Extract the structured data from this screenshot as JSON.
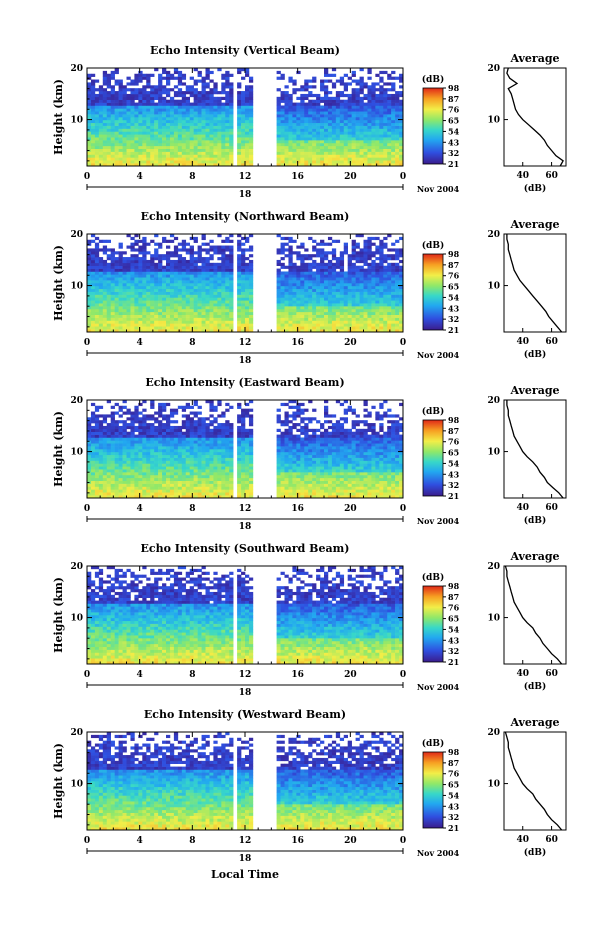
{
  "figure": {
    "x_axis_label": "Local Time",
    "date_label": "Nov 2004",
    "day_label": "18",
    "colorbar_unit": "(dB)",
    "average_title": "Average",
    "average_xlabel": "(dB)"
  },
  "chart_data": [
    {
      "type": "heatmap",
      "title": "Echo Intensity (Vertical Beam)",
      "ylabel": "Height (km)",
      "xlabel": "Local Time",
      "x_ticks": [
        "0",
        "4",
        "8",
        "12",
        "16",
        "20",
        "0"
      ],
      "y_ticks": [
        "10",
        "20"
      ],
      "xlim": [
        0,
        24
      ],
      "ylim": [
        1,
        20
      ],
      "colorbar": {
        "label": "(dB)",
        "ticks": [
          "21",
          "32",
          "43",
          "54",
          "65",
          "76",
          "87",
          "98"
        ],
        "range": [
          21,
          98
        ]
      },
      "data_gaps_hours": [
        [
          11.2,
          11.5
        ],
        [
          12.5,
          14.3
        ]
      ],
      "average_profile": {
        "title": "Average",
        "xlabel": "(dB)",
        "x_ticks": [
          "40",
          "60"
        ],
        "y_ticks": [
          "10",
          "20"
        ],
        "xlim": [
          27,
          70
        ],
        "ylim": [
          1,
          20
        ],
        "points": [
          [
            1,
            66
          ],
          [
            2,
            68
          ],
          [
            3,
            63
          ],
          [
            4,
            60
          ],
          [
            5,
            57
          ],
          [
            6,
            55
          ],
          [
            7,
            52
          ],
          [
            8,
            48
          ],
          [
            9,
            44
          ],
          [
            10,
            40
          ],
          [
            11,
            37
          ],
          [
            12,
            35
          ],
          [
            13,
            34
          ],
          [
            14,
            33
          ],
          [
            15,
            32
          ],
          [
            16,
            30
          ],
          [
            17,
            36
          ],
          [
            18,
            31
          ],
          [
            19,
            29
          ],
          [
            20,
            30
          ]
        ]
      }
    },
    {
      "type": "heatmap",
      "title": "Echo Intensity (Northward Beam)",
      "ylabel": "Height (km)",
      "xlabel": "Local Time",
      "x_ticks": [
        "0",
        "4",
        "8",
        "12",
        "16",
        "20",
        "0"
      ],
      "y_ticks": [
        "10",
        "20"
      ],
      "xlim": [
        0,
        24
      ],
      "ylim": [
        1,
        20
      ],
      "colorbar": {
        "label": "(dB)",
        "ticks": [
          "21",
          "32",
          "43",
          "54",
          "65",
          "76",
          "87",
          "98"
        ],
        "range": [
          21,
          98
        ]
      },
      "data_gaps_hours": [
        [
          11.2,
          11.5
        ],
        [
          12.5,
          14.3
        ]
      ],
      "average_profile": {
        "title": "Average",
        "xlabel": "(dB)",
        "x_ticks": [
          "40",
          "60"
        ],
        "y_ticks": [
          "10",
          "20"
        ],
        "xlim": [
          27,
          70
        ],
        "ylim": [
          1,
          20
        ],
        "points": [
          [
            1,
            67
          ],
          [
            2,
            64
          ],
          [
            3,
            61
          ],
          [
            4,
            58
          ],
          [
            5,
            56
          ],
          [
            6,
            53
          ],
          [
            7,
            50
          ],
          [
            8,
            47
          ],
          [
            9,
            44
          ],
          [
            10,
            41
          ],
          [
            11,
            38
          ],
          [
            12,
            36
          ],
          [
            13,
            34
          ],
          [
            14,
            33
          ],
          [
            15,
            32
          ],
          [
            16,
            31
          ],
          [
            17,
            30
          ],
          [
            18,
            30
          ],
          [
            19,
            29
          ],
          [
            20,
            29
          ]
        ]
      }
    },
    {
      "type": "heatmap",
      "title": "Echo Intensity (Eastward Beam)",
      "ylabel": "Height (km)",
      "xlabel": "Local Time",
      "x_ticks": [
        "0",
        "4",
        "8",
        "12",
        "16",
        "20",
        "0"
      ],
      "y_ticks": [
        "10",
        "20"
      ],
      "xlim": [
        0,
        24
      ],
      "ylim": [
        1,
        20
      ],
      "colorbar": {
        "label": "(dB)",
        "ticks": [
          "21",
          "32",
          "43",
          "54",
          "65",
          "76",
          "87",
          "98"
        ],
        "range": [
          21,
          98
        ]
      },
      "data_gaps_hours": [
        [
          11.2,
          11.5
        ],
        [
          12.5,
          14.3
        ]
      ],
      "average_profile": {
        "title": "Average",
        "xlabel": "(dB)",
        "x_ticks": [
          "40",
          "60"
        ],
        "y_ticks": [
          "10",
          "20"
        ],
        "xlim": [
          27,
          70
        ],
        "ylim": [
          1,
          20
        ],
        "points": [
          [
            1,
            68
          ],
          [
            2,
            65
          ],
          [
            3,
            61
          ],
          [
            4,
            57
          ],
          [
            5,
            55
          ],
          [
            6,
            52
          ],
          [
            7,
            50
          ],
          [
            8,
            47
          ],
          [
            9,
            43
          ],
          [
            10,
            40
          ],
          [
            11,
            38
          ],
          [
            12,
            36
          ],
          [
            13,
            34
          ],
          [
            14,
            33
          ],
          [
            15,
            32
          ],
          [
            16,
            31
          ],
          [
            17,
            30
          ],
          [
            18,
            30
          ],
          [
            19,
            29
          ],
          [
            20,
            29
          ]
        ]
      }
    },
    {
      "type": "heatmap",
      "title": "Echo Intensity (Southward Beam)",
      "ylabel": "Height (km)",
      "xlabel": "Local Time",
      "x_ticks": [
        "0",
        "4",
        "8",
        "12",
        "16",
        "20",
        "0"
      ],
      "y_ticks": [
        "10",
        "20"
      ],
      "xlim": [
        0,
        24
      ],
      "ylim": [
        1,
        20
      ],
      "colorbar": {
        "label": "(dB)",
        "ticks": [
          "21",
          "32",
          "43",
          "54",
          "65",
          "76",
          "87",
          "98"
        ],
        "range": [
          21,
          98
        ]
      },
      "data_gaps_hours": [
        [
          11.2,
          11.5
        ],
        [
          12.5,
          14.3
        ]
      ],
      "average_profile": {
        "title": "Average",
        "xlabel": "(dB)",
        "x_ticks": [
          "40",
          "60"
        ],
        "y_ticks": [
          "10",
          "20"
        ],
        "xlim": [
          27,
          70
        ],
        "ylim": [
          1,
          20
        ],
        "points": [
          [
            1,
            67
          ],
          [
            2,
            64
          ],
          [
            3,
            60
          ],
          [
            4,
            57
          ],
          [
            5,
            54
          ],
          [
            6,
            52
          ],
          [
            7,
            49
          ],
          [
            8,
            47
          ],
          [
            9,
            43
          ],
          [
            10,
            40
          ],
          [
            11,
            38
          ],
          [
            12,
            36
          ],
          [
            13,
            34
          ],
          [
            14,
            33
          ],
          [
            15,
            32
          ],
          [
            16,
            31
          ],
          [
            17,
            30
          ],
          [
            18,
            29
          ],
          [
            19,
            29
          ],
          [
            20,
            28
          ]
        ]
      }
    },
    {
      "type": "heatmap",
      "title": "Echo Intensity (Westward Beam)",
      "ylabel": "Height (km)",
      "xlabel": "Local Time",
      "x_ticks": [
        "0",
        "4",
        "8",
        "12",
        "16",
        "20",
        "0"
      ],
      "y_ticks": [
        "10",
        "20"
      ],
      "xlim": [
        0,
        24
      ],
      "ylim": [
        1,
        20
      ],
      "colorbar": {
        "label": "(dB)",
        "ticks": [
          "21",
          "32",
          "43",
          "54",
          "65",
          "76",
          "87",
          "98"
        ],
        "range": [
          21,
          98
        ]
      },
      "data_gaps_hours": [
        [
          11.2,
          11.5
        ],
        [
          12.5,
          14.3
        ]
      ],
      "average_profile": {
        "title": "Average",
        "xlabel": "(dB)",
        "x_ticks": [
          "40",
          "60"
        ],
        "y_ticks": [
          "10",
          "20"
        ],
        "xlim": [
          27,
          70
        ],
        "ylim": [
          1,
          20
        ],
        "points": [
          [
            1,
            67
          ],
          [
            2,
            64
          ],
          [
            3,
            60
          ],
          [
            4,
            57
          ],
          [
            5,
            55
          ],
          [
            6,
            52
          ],
          [
            7,
            49
          ],
          [
            8,
            47
          ],
          [
            9,
            43
          ],
          [
            10,
            40
          ],
          [
            11,
            38
          ],
          [
            12,
            36
          ],
          [
            13,
            34
          ],
          [
            14,
            33
          ],
          [
            15,
            32
          ],
          [
            16,
            31
          ],
          [
            17,
            30
          ],
          [
            18,
            30
          ],
          [
            19,
            29
          ],
          [
            20,
            28
          ]
        ]
      }
    }
  ]
}
